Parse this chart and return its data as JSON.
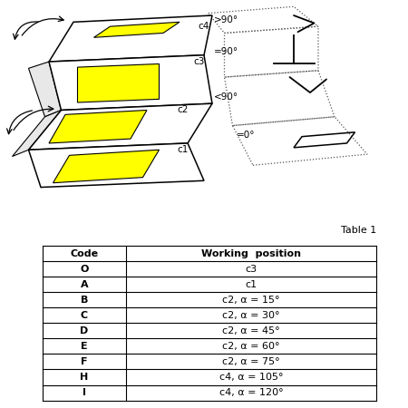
{
  "table_title": "Table 1",
  "table_headers": [
    "Code",
    "Working  position"
  ],
  "table_rows": [
    [
      "O",
      "c3"
    ],
    [
      "A",
      "c1"
    ],
    [
      "B",
      "c2, α = 15°"
    ],
    [
      "C",
      "c2, α = 30°"
    ],
    [
      "D",
      "c2, α = 45°"
    ],
    [
      "E",
      "c2, α = 60°"
    ],
    [
      "F",
      "c2, α = 75°"
    ],
    [
      "H",
      "c4, α = 105°"
    ],
    [
      "I",
      "c4, α = 120°"
    ]
  ],
  "bg_color": "#ffffff",
  "line_color": "#000000",
  "yellow_color": "#ffff00"
}
